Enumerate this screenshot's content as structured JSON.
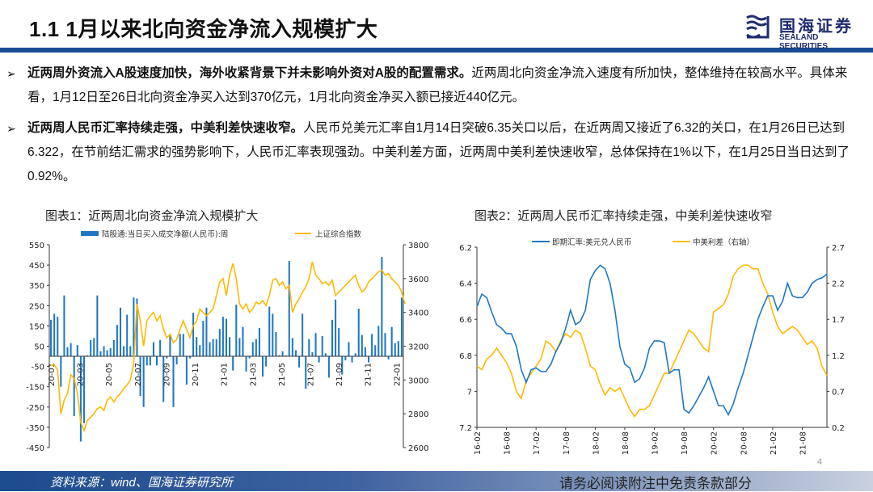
{
  "header": {
    "title": "1.1 1月以来北向资金净流入规模扩大",
    "logo_cn": "国海证券",
    "logo_en": "SEALAND SECURITIES",
    "accent": "#1a4a93"
  },
  "bullets": [
    {
      "bold": "近两周外资流入A股速度加快，海外收紧背景下并未影响外资对A股的配置需求。",
      "text": "近两周北向资金净流入速度有所加快，整体维持在较高水平。具体来看，1月12日至26日北向资金净买入达到370亿元，1月北向资金净买入额已接近440亿元。"
    },
    {
      "bold": "近两周人民币汇率持续走强，中美利差快速收窄。",
      "text": "人民币兑美元汇率自1月14日突破6.35关口以后，在近两周又接近了6.32的关口，在1月26日已达到6.322，在节前结汇需求的强势影响下，人民币汇率表现强劲。中美利差方面，近两周中美利差快速收窄，总体保持在1%以下，在1月25日当日达到了0.92%。"
    }
  ],
  "chart_data": [
    {
      "type": "bar+line",
      "title": "图表1：近两周北向资金净流入规模扩大",
      "series": [
        {
          "name": "陆股通:当日买入成交净额(人民币):周",
          "type": "bar",
          "axis": "left",
          "color": "#1f77c4",
          "values": [
            180,
            210,
            195,
            -150,
            300,
            45,
            65,
            -295,
            55,
            -420,
            -330,
            5,
            80,
            90,
            300,
            25,
            50,
            30,
            40,
            80,
            155,
            240,
            50,
            205,
            50,
            290,
            285,
            -195,
            -250,
            -45,
            -45,
            70,
            -45,
            80,
            -225,
            -10,
            110,
            -250,
            -40,
            110,
            110,
            -140,
            -10,
            215,
            95,
            55,
            175,
            240,
            70,
            85,
            85,
            135,
            195,
            185,
            95,
            -70,
            255,
            90,
            145,
            -75,
            -10,
            70,
            85,
            140,
            -100,
            -50,
            245,
            210,
            120,
            5,
            25,
            5,
            470,
            90,
            30,
            -55,
            210,
            -160,
            85,
            20,
            115,
            -30,
            100,
            15,
            -105,
            180,
            280,
            140,
            -90,
            -20,
            70,
            -30,
            15,
            235,
            105,
            45,
            -30,
            110,
            55,
            150,
            490,
            115,
            -15,
            145,
            65,
            75,
            290
          ]
        },
        {
          "name": "上证综合指数",
          "type": "line",
          "axis": "right",
          "color": "#ffb900",
          "values": [
            3085,
            3090,
            3060,
            2800,
            2880,
            2920,
            3030,
            3010,
            2920,
            2750,
            2700,
            2760,
            2780,
            2800,
            2830,
            2840,
            2820,
            2880,
            2900,
            2870,
            2900,
            2920,
            2950,
            2970,
            3000,
            3100,
            3450,
            3350,
            3200,
            3350,
            3380,
            3400,
            3350,
            3380,
            3300,
            3250,
            3270,
            3220,
            3240,
            3300,
            3350,
            3300,
            3250,
            3320,
            3350,
            3420,
            3400,
            3380,
            3400,
            3420,
            3500,
            3580,
            3600,
            3500,
            3620,
            3690,
            3600,
            3450,
            3420,
            3450,
            3400,
            3420,
            3460,
            3450,
            3470,
            3440,
            3500,
            3590,
            3600,
            3560,
            3580,
            3540,
            3560,
            3400,
            3450,
            3480,
            3520,
            3550,
            3600,
            3700,
            3620,
            3600,
            3570,
            3580,
            3560,
            3590,
            3500,
            3520,
            3540,
            3560,
            3580,
            3600,
            3620,
            3560,
            3520,
            3540,
            3580,
            3600,
            3620,
            3640,
            3650,
            3620,
            3630,
            3600,
            3580,
            3560,
            3520,
            3450
          ]
        }
      ],
      "x_ticks": [
        "20-01",
        "20-03",
        "20-05",
        "20-07",
        "20-09",
        "20-11",
        "21-01",
        "21-03",
        "21-05",
        "21-07",
        "21-09",
        "21-11",
        "22-01"
      ],
      "y_left": {
        "ticks": [
          550,
          450,
          350,
          250,
          150,
          50,
          -50,
          -150,
          -250,
          -350,
          -450
        ],
        "range": [
          -450,
          550
        ]
      },
      "y_right": {
        "ticks": [
          3800,
          3600,
          3400,
          3200,
          3000,
          2800,
          2600
        ],
        "range": [
          2600,
          3800
        ]
      },
      "legend": "top"
    },
    {
      "type": "line",
      "title": "图表2：近两周人民币汇率持续走强，中美利差快速收窄",
      "x": [
        "16-02",
        "16-03",
        "16-04",
        "16-05",
        "16-06",
        "16-07",
        "16-08",
        "16-09",
        "16-10",
        "16-11",
        "16-12",
        "17-01",
        "17-02",
        "17-03",
        "17-04",
        "17-05",
        "17-06",
        "17-07",
        "17-08",
        "17-09",
        "17-10",
        "17-11",
        "17-12",
        "18-01",
        "18-02",
        "18-03",
        "18-04",
        "18-05",
        "18-06",
        "18-07",
        "18-08",
        "18-09",
        "18-10",
        "18-11",
        "18-12",
        "19-01",
        "19-02",
        "19-03",
        "19-04",
        "19-05",
        "19-06",
        "19-07",
        "19-08",
        "19-09",
        "19-10",
        "19-11",
        "19-12",
        "20-01",
        "20-02",
        "20-03",
        "20-04",
        "20-05",
        "20-06",
        "20-07",
        "20-08",
        "20-09",
        "20-10",
        "20-11",
        "20-12",
        "21-01",
        "21-02",
        "21-03",
        "21-04",
        "21-05",
        "21-06",
        "21-07",
        "21-08",
        "21-09",
        "21-10",
        "21-11",
        "21-12",
        "22-01"
      ],
      "series": [
        {
          "name": "即期汇率:美元兑人民币",
          "axis": "left",
          "color": "#1f77c4",
          "values": [
            6.53,
            6.46,
            6.48,
            6.56,
            6.63,
            6.65,
            6.68,
            6.68,
            6.75,
            6.88,
            6.95,
            6.88,
            6.87,
            6.89,
            6.89,
            6.85,
            6.78,
            6.73,
            6.65,
            6.55,
            6.63,
            6.61,
            6.55,
            6.38,
            6.33,
            6.3,
            6.32,
            6.4,
            6.55,
            6.75,
            6.85,
            6.87,
            6.95,
            6.93,
            6.87,
            6.76,
            6.72,
            6.72,
            6.73,
            6.9,
            6.88,
            6.88,
            7.1,
            7.12,
            7.08,
            7.03,
            6.98,
            6.92,
            7.0,
            7.08,
            7.08,
            7.13,
            7.07,
            6.98,
            6.9,
            6.8,
            6.7,
            6.6,
            6.53,
            6.47,
            6.47,
            6.55,
            6.5,
            6.4,
            6.47,
            6.48,
            6.48,
            6.45,
            6.4,
            6.38,
            6.37,
            6.35
          ]
        },
        {
          "name": "中美利差（右轴）",
          "axis": "right",
          "color": "#ffb900",
          "values": [
            1.05,
            1.0,
            1.15,
            1.2,
            1.3,
            1.2,
            1.1,
            0.95,
            0.7,
            0.6,
            0.85,
            0.95,
            1.05,
            1.15,
            1.4,
            1.35,
            1.25,
            1.4,
            1.5,
            1.45,
            1.55,
            1.5,
            1.3,
            1.05,
            1.0,
            0.8,
            0.65,
            0.75,
            0.7,
            0.75,
            0.6,
            0.45,
            0.35,
            0.45,
            0.45,
            0.5,
            0.65,
            0.8,
            0.95,
            0.95,
            1.1,
            1.25,
            1.4,
            1.55,
            1.5,
            1.4,
            1.3,
            1.25,
            1.8,
            1.85,
            1.9,
            2.05,
            2.3,
            2.4,
            2.45,
            2.45,
            2.4,
            2.4,
            2.2,
            2.05,
            1.8,
            1.6,
            1.5,
            1.55,
            1.6,
            1.55,
            1.45,
            1.35,
            1.4,
            1.3,
            1.05,
            0.92
          ]
        }
      ],
      "x_ticks": [
        "16-02",
        "16-08",
        "17-02",
        "17-08",
        "18-02",
        "18-08",
        "19-02",
        "19-08",
        "20-02",
        "20-08",
        "21-02",
        "21-08"
      ],
      "y_left": {
        "ticks": [
          "6.2",
          "6.4",
          "6.6",
          "6.8",
          "7",
          "7.2"
        ],
        "range": [
          6.2,
          7.2
        ],
        "inverted": true
      },
      "y_right": {
        "ticks": [
          "2.7",
          "2.2",
          "1.7",
          "1.2",
          "0.7",
          "0.2"
        ],
        "range": [
          0.2,
          2.7
        ]
      },
      "legend": "top"
    }
  ],
  "footer": {
    "source": "资料来源：wind、国海证券研究所",
    "disclaimer": "请务必阅读附注中免责条款部分",
    "page": "4"
  }
}
